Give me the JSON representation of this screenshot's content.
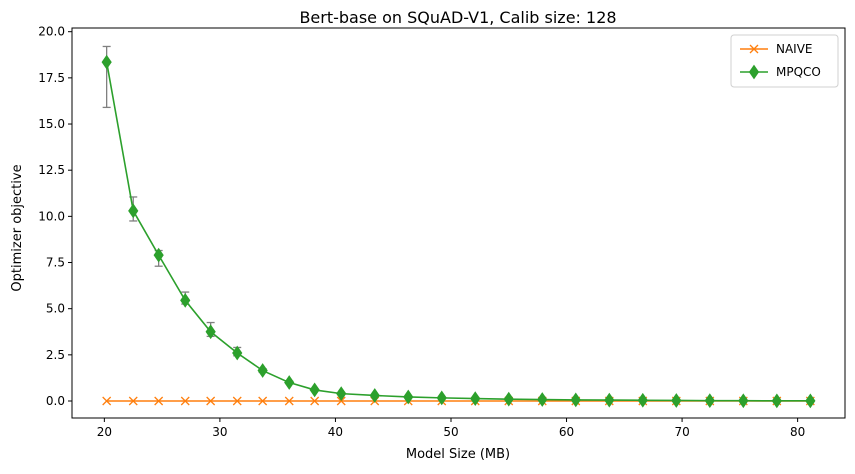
{
  "chart_data": {
    "type": "line",
    "title": "Bert-base on SQuAD-V1, Calib size: 128",
    "xlabel": "Model Size (MB)",
    "ylabel": "Optimizer objective",
    "xlim": [
      17.2,
      84.1
    ],
    "ylim": [
      -0.92,
      20.2
    ],
    "xticks": [
      20,
      30,
      40,
      50,
      60,
      70,
      80
    ],
    "yticks": [
      0.0,
      2.5,
      5.0,
      7.5,
      10.0,
      12.5,
      15.0,
      17.5,
      20.0
    ],
    "xtick_labels": [
      "20",
      "30",
      "40",
      "50",
      "60",
      "70",
      "80"
    ],
    "ytick_labels": [
      "0.0",
      "2.5",
      "5.0",
      "7.5",
      "10.0",
      "12.5",
      "15.0",
      "17.5",
      "20.0"
    ],
    "grid": false,
    "legend_position": "top-right",
    "series": [
      {
        "name": "NAIVE",
        "color": "#ff7f0e",
        "marker": "x",
        "x": [
          20.2,
          22.5,
          24.7,
          27.0,
          29.2,
          31.5,
          33.7,
          36.0,
          38.2,
          40.5,
          43.4,
          46.3,
          49.2,
          52.1,
          55.0,
          57.9,
          60.8,
          63.7,
          66.6,
          69.5,
          72.4,
          75.3,
          78.2,
          81.1
        ],
        "y": [
          0,
          0,
          0,
          0,
          0,
          0,
          0,
          0,
          0,
          0,
          0,
          0,
          0,
          0,
          0,
          0,
          0,
          0,
          0,
          0,
          0,
          0,
          0,
          0
        ]
      },
      {
        "name": "MPQCO",
        "color": "#2ca02c",
        "marker": "diamond",
        "x": [
          20.2,
          22.5,
          24.7,
          27.0,
          29.2,
          31.5,
          33.7,
          36.0,
          38.2,
          40.5,
          43.4,
          46.3,
          49.2,
          52.1,
          55.0,
          57.9,
          60.8,
          63.7,
          66.6,
          69.5,
          72.4,
          75.3,
          78.2,
          81.1
        ],
        "y": [
          18.35,
          10.3,
          7.9,
          5.45,
          3.75,
          2.6,
          1.65,
          1.0,
          0.6,
          0.4,
          0.3,
          0.22,
          0.17,
          0.13,
          0.1,
          0.08,
          0.06,
          0.05,
          0.04,
          0.03,
          0.02,
          0.015,
          0.01,
          0.01
        ],
        "err_low": [
          15.9,
          9.75,
          7.3,
          5.25,
          3.5,
          2.45,
          1.55,
          0.95,
          0.57,
          0.38,
          0.29,
          0.21,
          0.16,
          0.12,
          0.09,
          0.07,
          0.05,
          0.04,
          0.03,
          0.02,
          0.015,
          0.01,
          0.005,
          0.005
        ],
        "err_high": [
          19.2,
          11.05,
          8.15,
          5.9,
          4.25,
          2.9,
          1.75,
          1.08,
          0.65,
          0.43,
          0.32,
          0.24,
          0.19,
          0.15,
          0.12,
          0.1,
          0.08,
          0.07,
          0.05,
          0.04,
          0.03,
          0.02,
          0.02,
          0.02
        ]
      }
    ]
  }
}
